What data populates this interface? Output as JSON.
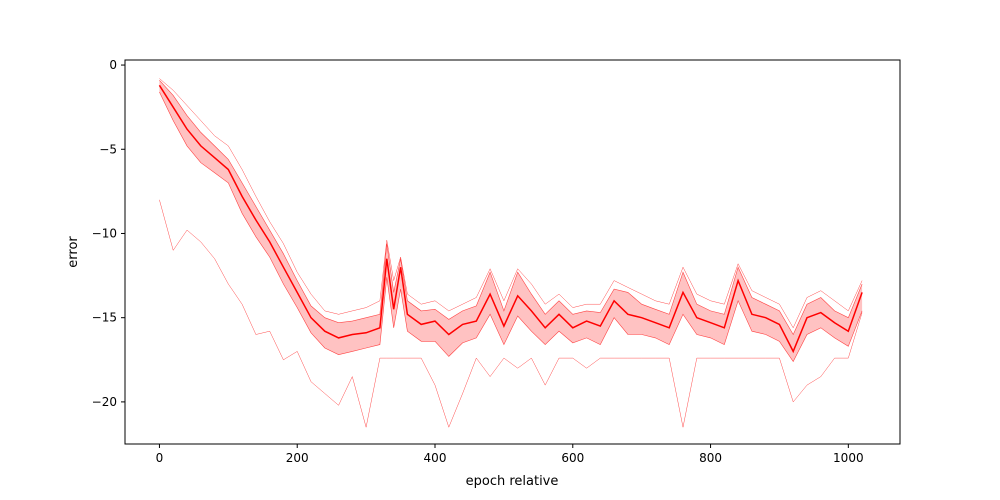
{
  "chart_data": {
    "type": "line",
    "title": "",
    "xlabel": "epoch relative",
    "ylabel": "error",
    "xlim": [
      -50,
      1075
    ],
    "ylim": [
      -22.5,
      0.3
    ],
    "xticks": [
      0,
      200,
      400,
      600,
      800,
      1000
    ],
    "yticks": [
      0,
      -5,
      -10,
      -15,
      -20
    ],
    "grid": false,
    "legend": "none",
    "colors": {
      "line": "#ff0000",
      "band": "#ffbbbb",
      "axes": "#000000"
    },
    "series": [
      {
        "role": "median",
        "x": [
          0,
          20,
          40,
          60,
          80,
          100,
          120,
          140,
          160,
          180,
          200,
          220,
          240,
          260,
          280,
          300,
          320,
          330,
          340,
          350,
          360,
          380,
          400,
          420,
          440,
          460,
          480,
          500,
          520,
          540,
          560,
          580,
          600,
          620,
          640,
          660,
          680,
          700,
          720,
          740,
          760,
          780,
          800,
          820,
          840,
          860,
          880,
          900,
          920,
          940,
          960,
          980,
          1000,
          1020
        ],
        "y": [
          -1.2,
          -2.5,
          -3.8,
          -4.8,
          -5.5,
          -6.2,
          -7.8,
          -9.2,
          -10.5,
          -12.0,
          -13.5,
          -15.0,
          -15.8,
          -16.2,
          -16.0,
          -15.9,
          -15.6,
          -11.5,
          -14.5,
          -12.0,
          -14.8,
          -15.4,
          -15.2,
          -16.0,
          -15.4,
          -15.2,
          -13.6,
          -15.5,
          -13.7,
          -14.6,
          -15.6,
          -14.8,
          -15.6,
          -15.2,
          -15.5,
          -14.0,
          -14.8,
          -15.0,
          -15.3,
          -15.6,
          -13.5,
          -15.0,
          -15.3,
          -15.6,
          -12.8,
          -14.8,
          -15.0,
          -15.4,
          -17.0,
          -15.0,
          -14.7,
          -15.3,
          -15.8,
          -13.5
        ]
      },
      {
        "role": "upper",
        "x": [
          0,
          20,
          40,
          60,
          80,
          100,
          120,
          140,
          160,
          180,
          200,
          220,
          240,
          260,
          280,
          300,
          320,
          330,
          340,
          350,
          360,
          380,
          400,
          420,
          440,
          460,
          480,
          500,
          520,
          540,
          560,
          580,
          600,
          620,
          640,
          660,
          680,
          700,
          720,
          740,
          760,
          780,
          800,
          820,
          840,
          860,
          880,
          900,
          920,
          940,
          960,
          980,
          1000,
          1020
        ],
        "y": [
          -0.9,
          -1.8,
          -3.0,
          -4.0,
          -4.8,
          -5.6,
          -7.0,
          -8.4,
          -9.8,
          -11.2,
          -12.8,
          -14.3,
          -15.0,
          -15.3,
          -15.2,
          -15.0,
          -14.8,
          -10.6,
          -13.5,
          -11.5,
          -14.0,
          -14.6,
          -14.5,
          -15.1,
          -14.6,
          -14.3,
          -12.3,
          -14.6,
          -12.3,
          -13.6,
          -14.8,
          -14.0,
          -14.8,
          -14.6,
          -14.7,
          -13.3,
          -13.5,
          -14.2,
          -14.5,
          -14.8,
          -12.3,
          -14.2,
          -14.6,
          -14.8,
          -12.0,
          -13.8,
          -14.2,
          -14.6,
          -16.0,
          -14.2,
          -13.8,
          -14.6,
          -15.0,
          -13.0
        ]
      },
      {
        "role": "lower",
        "x": [
          0,
          20,
          40,
          60,
          80,
          100,
          120,
          140,
          160,
          180,
          200,
          220,
          240,
          260,
          280,
          300,
          320,
          330,
          340,
          350,
          360,
          380,
          400,
          420,
          440,
          460,
          480,
          500,
          520,
          540,
          560,
          580,
          600,
          620,
          640,
          660,
          680,
          700,
          720,
          740,
          760,
          780,
          800,
          820,
          840,
          860,
          880,
          900,
          920,
          940,
          960,
          980,
          1000,
          1020
        ],
        "y": [
          -1.6,
          -3.3,
          -4.8,
          -5.8,
          -6.4,
          -7.0,
          -8.8,
          -10.2,
          -11.4,
          -13.0,
          -14.4,
          -15.9,
          -16.8,
          -17.2,
          -17.0,
          -16.8,
          -16.6,
          -12.6,
          -15.6,
          -13.3,
          -15.8,
          -16.4,
          -16.4,
          -17.3,
          -16.5,
          -16.2,
          -14.8,
          -16.6,
          -14.9,
          -15.8,
          -16.6,
          -15.8,
          -16.5,
          -16.2,
          -16.6,
          -15.0,
          -16.0,
          -16.0,
          -16.2,
          -16.6,
          -14.8,
          -16.0,
          -16.2,
          -16.6,
          -14.0,
          -15.8,
          -16.0,
          -16.4,
          -17.6,
          -16.0,
          -15.6,
          -16.2,
          -16.7,
          -14.6
        ]
      },
      {
        "role": "max-envelope",
        "x": [
          0,
          20,
          40,
          60,
          80,
          100,
          120,
          140,
          160,
          180,
          200,
          220,
          240,
          260,
          280,
          300,
          320,
          330,
          340,
          350,
          360,
          380,
          400,
          420,
          440,
          460,
          480,
          500,
          520,
          540,
          560,
          580,
          600,
          620,
          640,
          660,
          680,
          700,
          720,
          740,
          760,
          780,
          800,
          820,
          840,
          860,
          880,
          900,
          920,
          940,
          960,
          980,
          1000,
          1020
        ],
        "y": [
          -0.8,
          -1.5,
          -2.4,
          -3.3,
          -4.2,
          -4.8,
          -6.2,
          -7.8,
          -9.3,
          -10.6,
          -12.3,
          -13.6,
          -14.6,
          -14.8,
          -14.6,
          -14.4,
          -14.0,
          -10.4,
          -12.8,
          -11.4,
          -13.6,
          -14.2,
          -14.0,
          -14.6,
          -14.2,
          -13.8,
          -12.1,
          -14.0,
          -12.1,
          -13.0,
          -14.2,
          -13.6,
          -14.4,
          -14.2,
          -14.2,
          -12.8,
          -13.2,
          -13.6,
          -14.0,
          -14.2,
          -12.0,
          -13.6,
          -14.0,
          -14.2,
          -11.8,
          -13.4,
          -13.8,
          -14.2,
          -15.6,
          -13.8,
          -13.4,
          -14.0,
          -14.6,
          -12.8
        ]
      },
      {
        "role": "min-envelope",
        "x": [
          0,
          20,
          40,
          60,
          80,
          100,
          120,
          140,
          160,
          180,
          200,
          220,
          240,
          260,
          280,
          300,
          320,
          330,
          340,
          350,
          360,
          380,
          400,
          420,
          440,
          460,
          480,
          500,
          520,
          540,
          560,
          580,
          600,
          620,
          640,
          660,
          680,
          700,
          720,
          740,
          760,
          780,
          800,
          820,
          840,
          860,
          880,
          900,
          920,
          940,
          960,
          980,
          1000,
          1020
        ],
        "y": [
          -8.0,
          -11.0,
          -9.8,
          -10.5,
          -11.5,
          -13.0,
          -14.2,
          -16.0,
          -15.8,
          -17.5,
          -17.0,
          -18.8,
          -19.5,
          -20.2,
          -18.5,
          -21.5,
          -17.4,
          -17.4,
          -17.4,
          -17.4,
          -17.4,
          -17.4,
          -19.0,
          -21.5,
          -19.5,
          -17.4,
          -18.5,
          -17.4,
          -18.0,
          -17.4,
          -19.0,
          -17.4,
          -17.4,
          -18.0,
          -17.4,
          -17.4,
          -17.4,
          -17.4,
          -17.4,
          -17.4,
          -21.5,
          -17.4,
          -17.4,
          -17.4,
          -17.4,
          -17.4,
          -17.4,
          -17.4,
          -20.0,
          -19.0,
          -18.5,
          -17.4,
          -17.4,
          -14.7
        ]
      }
    ]
  }
}
